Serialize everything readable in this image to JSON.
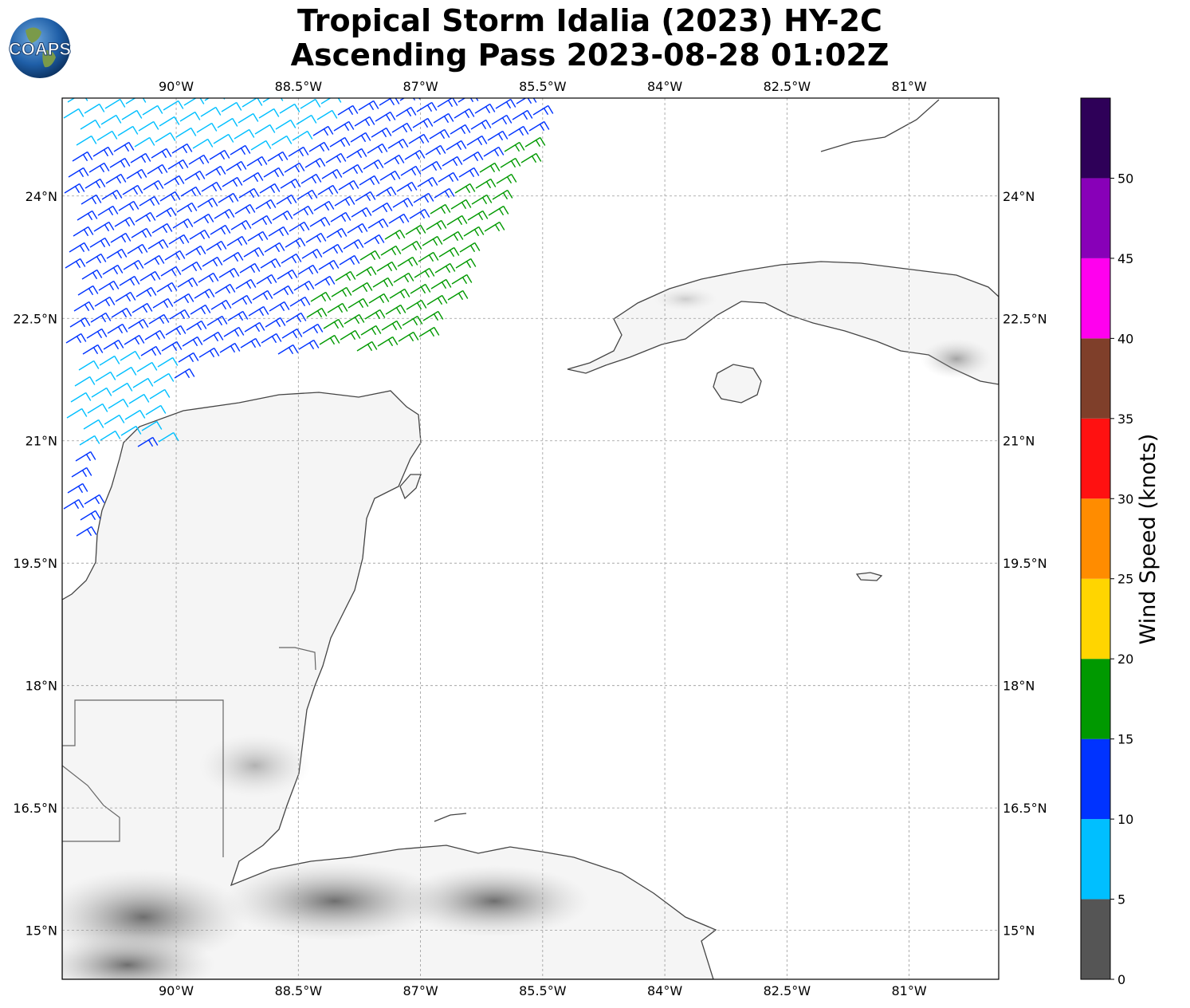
{
  "title": {
    "line1": "Tropical Storm Idalia (2023) HY-2C",
    "line2": "Ascending Pass 2023-08-28 01:02Z"
  },
  "logo": {
    "text": "COAPS"
  },
  "map": {
    "lon_range": [
      -91.4,
      -79.9
    ],
    "lat_range": [
      14.4,
      25.2
    ],
    "lon_ticks": [
      "90°W",
      "88.5°W",
      "87°W",
      "85.5°W",
      "84°W",
      "82.5°W",
      "81°W"
    ],
    "lat_ticks": [
      "24°N",
      "22.5°N",
      "21°N",
      "19.5°N",
      "18°N",
      "16.5°N",
      "15°N"
    ],
    "grid": true,
    "gridline_style": "dashed gray",
    "land_shading": "grayscale terrain"
  },
  "colorbar": {
    "label": "Wind Speed (knots)",
    "ticks": [
      "0",
      "5",
      "10",
      "15",
      "20",
      "25",
      "30",
      "35",
      "40",
      "45",
      "50"
    ],
    "bins": [
      {
        "range": [
          0,
          5
        ],
        "color": "#555555"
      },
      {
        "range": [
          5,
          10
        ],
        "color": "#00bfff"
      },
      {
        "range": [
          10,
          15
        ],
        "color": "#0033ff"
      },
      {
        "range": [
          15,
          20
        ],
        "color": "#009900"
      },
      {
        "range": [
          20,
          25
        ],
        "color": "#ffd500"
      },
      {
        "range": [
          25,
          30
        ],
        "color": "#ff8c00"
      },
      {
        "range": [
          30,
          35
        ],
        "color": "#ff1111"
      },
      {
        "range": [
          35,
          40
        ],
        "color": "#7f3f2a"
      },
      {
        "range": [
          40,
          45
        ],
        "color": "#ff00ee"
      },
      {
        "range": [
          45,
          50
        ],
        "color": "#8800b8"
      },
      {
        "range": [
          50,
          55
        ],
        "color": "#2e0058"
      }
    ]
  }
}
